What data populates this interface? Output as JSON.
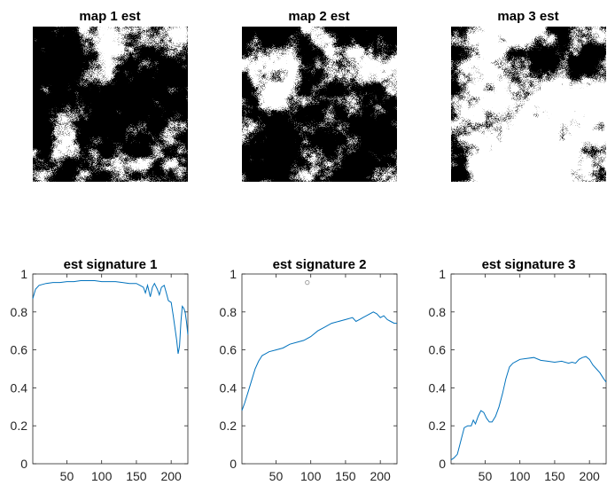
{
  "maps": [
    {
      "title": "map 1 est",
      "seed": 11,
      "bias": 0.58
    },
    {
      "title": "map 2 est",
      "seed": 27,
      "bias": 0.6
    },
    {
      "title": "map 3 est",
      "seed": 43,
      "bias": 0.42
    }
  ],
  "chart_data": [
    {
      "type": "line",
      "title": "est signature 1",
      "xlim": [
        1,
        224
      ],
      "ylim": [
        0,
        1
      ],
      "xticks": [
        "50",
        "100",
        "150",
        "200"
      ],
      "yticks": [
        "0",
        "0.2",
        "0.4",
        "0.6",
        "0.8",
        "1"
      ],
      "line_color": "#0072BD",
      "series": [
        {
          "x": [
            1,
            5,
            10,
            20,
            30,
            40,
            50,
            60,
            70,
            80,
            90,
            100,
            110,
            120,
            130,
            140,
            150,
            155,
            160,
            163,
            166,
            170,
            173,
            176,
            180,
            183,
            186,
            190,
            193,
            196,
            200,
            203,
            206,
            208,
            210,
            212,
            214,
            216,
            218,
            220,
            222,
            224
          ],
          "y": [
            0.87,
            0.92,
            0.94,
            0.95,
            0.955,
            0.955,
            0.96,
            0.96,
            0.965,
            0.965,
            0.965,
            0.96,
            0.96,
            0.96,
            0.955,
            0.95,
            0.95,
            0.94,
            0.93,
            0.9,
            0.94,
            0.88,
            0.93,
            0.95,
            0.92,
            0.89,
            0.93,
            0.94,
            0.9,
            0.86,
            0.85,
            0.78,
            0.7,
            0.65,
            0.58,
            0.62,
            0.75,
            0.83,
            0.82,
            0.8,
            0.75,
            0.68
          ]
        }
      ]
    },
    {
      "type": "line",
      "title": "est signature 2",
      "xlim": [
        1,
        224
      ],
      "ylim": [
        0,
        1
      ],
      "xticks": [
        "50",
        "100",
        "150",
        "200"
      ],
      "yticks": [
        "0",
        "0.2",
        "0.4",
        "0.6",
        "0.8",
        "1"
      ],
      "line_color": "#0072BD",
      "series": [
        {
          "x": [
            1,
            5,
            10,
            15,
            20,
            25,
            30,
            35,
            40,
            50,
            60,
            70,
            80,
            90,
            100,
            110,
            120,
            130,
            140,
            150,
            160,
            165,
            170,
            175,
            180,
            185,
            190,
            195,
            200,
            205,
            210,
            215,
            220,
            224
          ],
          "y": [
            0.28,
            0.32,
            0.38,
            0.44,
            0.5,
            0.54,
            0.57,
            0.58,
            0.59,
            0.6,
            0.61,
            0.63,
            0.64,
            0.65,
            0.67,
            0.7,
            0.72,
            0.74,
            0.75,
            0.76,
            0.77,
            0.75,
            0.76,
            0.77,
            0.78,
            0.79,
            0.8,
            0.79,
            0.77,
            0.78,
            0.76,
            0.75,
            0.74,
            0.74
          ]
        }
      ],
      "annotations": [
        {
          "x": 95,
          "y": 0.955,
          "marker": "circle",
          "color": "#999999"
        }
      ]
    },
    {
      "type": "line",
      "title": "est signature 3",
      "xlim": [
        1,
        224
      ],
      "ylim": [
        0,
        1
      ],
      "xticks": [
        "50",
        "100",
        "150",
        "200"
      ],
      "yticks": [
        "0",
        "0.2",
        "0.4",
        "0.6",
        "0.8",
        "1"
      ],
      "line_color": "#0072BD",
      "series": [
        {
          "x": [
            1,
            5,
            10,
            15,
            20,
            25,
            30,
            33,
            36,
            40,
            44,
            48,
            52,
            56,
            60,
            65,
            70,
            75,
            80,
            85,
            90,
            95,
            100,
            110,
            120,
            130,
            140,
            150,
            160,
            170,
            175,
            180,
            185,
            190,
            195,
            200,
            205,
            210,
            215,
            220,
            224
          ],
          "y": [
            0.02,
            0.03,
            0.05,
            0.12,
            0.19,
            0.2,
            0.2,
            0.23,
            0.21,
            0.25,
            0.28,
            0.27,
            0.24,
            0.22,
            0.22,
            0.25,
            0.3,
            0.37,
            0.45,
            0.51,
            0.53,
            0.54,
            0.55,
            0.555,
            0.56,
            0.545,
            0.54,
            0.535,
            0.54,
            0.53,
            0.535,
            0.53,
            0.55,
            0.56,
            0.565,
            0.55,
            0.52,
            0.5,
            0.48,
            0.45,
            0.43
          ]
        }
      ]
    }
  ]
}
